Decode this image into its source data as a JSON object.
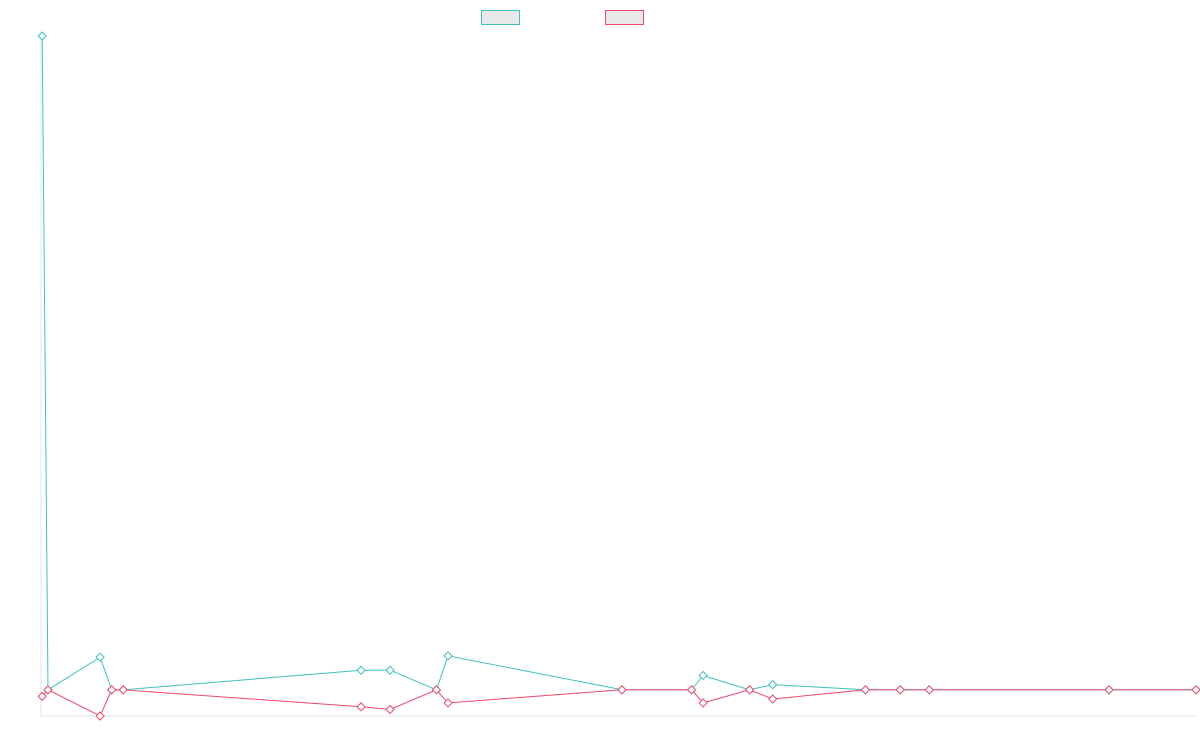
{
  "chart_data": {
    "type": "line",
    "title": "",
    "xlabel": "",
    "ylabel": "",
    "legend": "top-center",
    "grid": false,
    "x": [
      0,
      1,
      10,
      12,
      14,
      55,
      60,
      68,
      70,
      100,
      112,
      114,
      122,
      126,
      142,
      148,
      153,
      184,
      199
    ],
    "ylim": [
      -1,
      25
    ],
    "xlim": [
      -0.2,
      199
    ],
    "series": [
      {
        "color": "#3fc1c0",
        "values": [
          25,
          0,
          1.25,
          0,
          0,
          0.75,
          0.75,
          0,
          1.3,
          0,
          0,
          0.55,
          0,
          0.2,
          0,
          0,
          0,
          0,
          0
        ]
      },
      {
        "color": "#f0466b",
        "values": [
          -0.25,
          0,
          -1,
          0,
          0,
          -0.65,
          -0.75,
          0,
          -0.5,
          0,
          0,
          -0.5,
          0,
          -0.35,
          0,
          0,
          0,
          0,
          0
        ]
      }
    ]
  }
}
